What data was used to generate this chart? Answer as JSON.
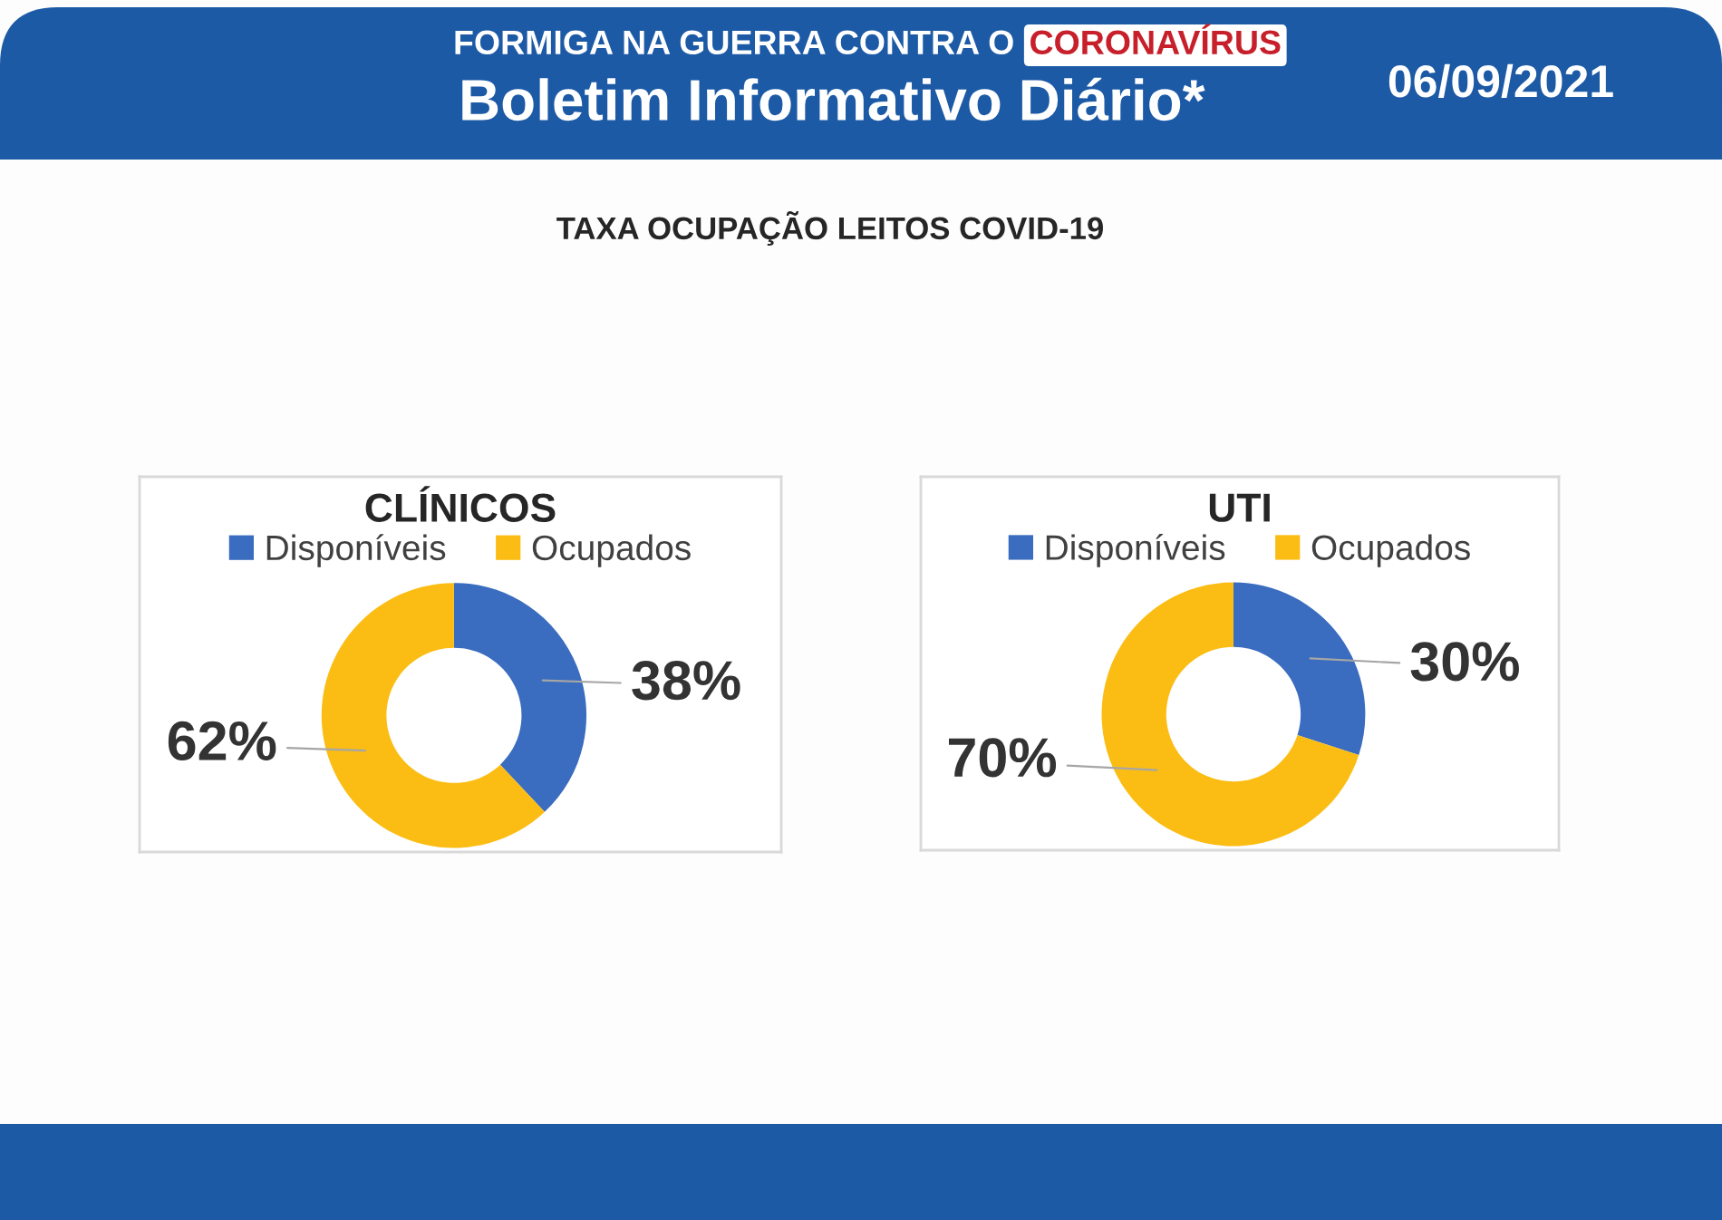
{
  "chart_data": [
    {
      "type": "donut",
      "title": "CLÍNICOS",
      "categories": [
        "Disponíveis",
        "Ocupados"
      ],
      "values": [
        38,
        62
      ],
      "colors": [
        "#3a6cbf",
        "#fbbd14"
      ],
      "value_labels": [
        "38%",
        "62%"
      ],
      "legend": "top",
      "annotations": [
        "FORMIGA NA GUERRA CONTRA O",
        "CORONAVÍRUS",
        "Boletim Informativo Diário*",
        "06/09/2021",
        "TAXA OCUPAÇÃO LEITOS COVID-19"
      ]
    },
    {
      "type": "donut",
      "title": "UTI",
      "categories": [
        "Disponíveis",
        "Ocupados"
      ],
      "values": [
        30,
        70
      ],
      "colors": [
        "#3a6cbf",
        "#fbbd14"
      ],
      "value_labels": [
        "30%",
        "70%"
      ],
      "legend": "top"
    }
  ]
}
